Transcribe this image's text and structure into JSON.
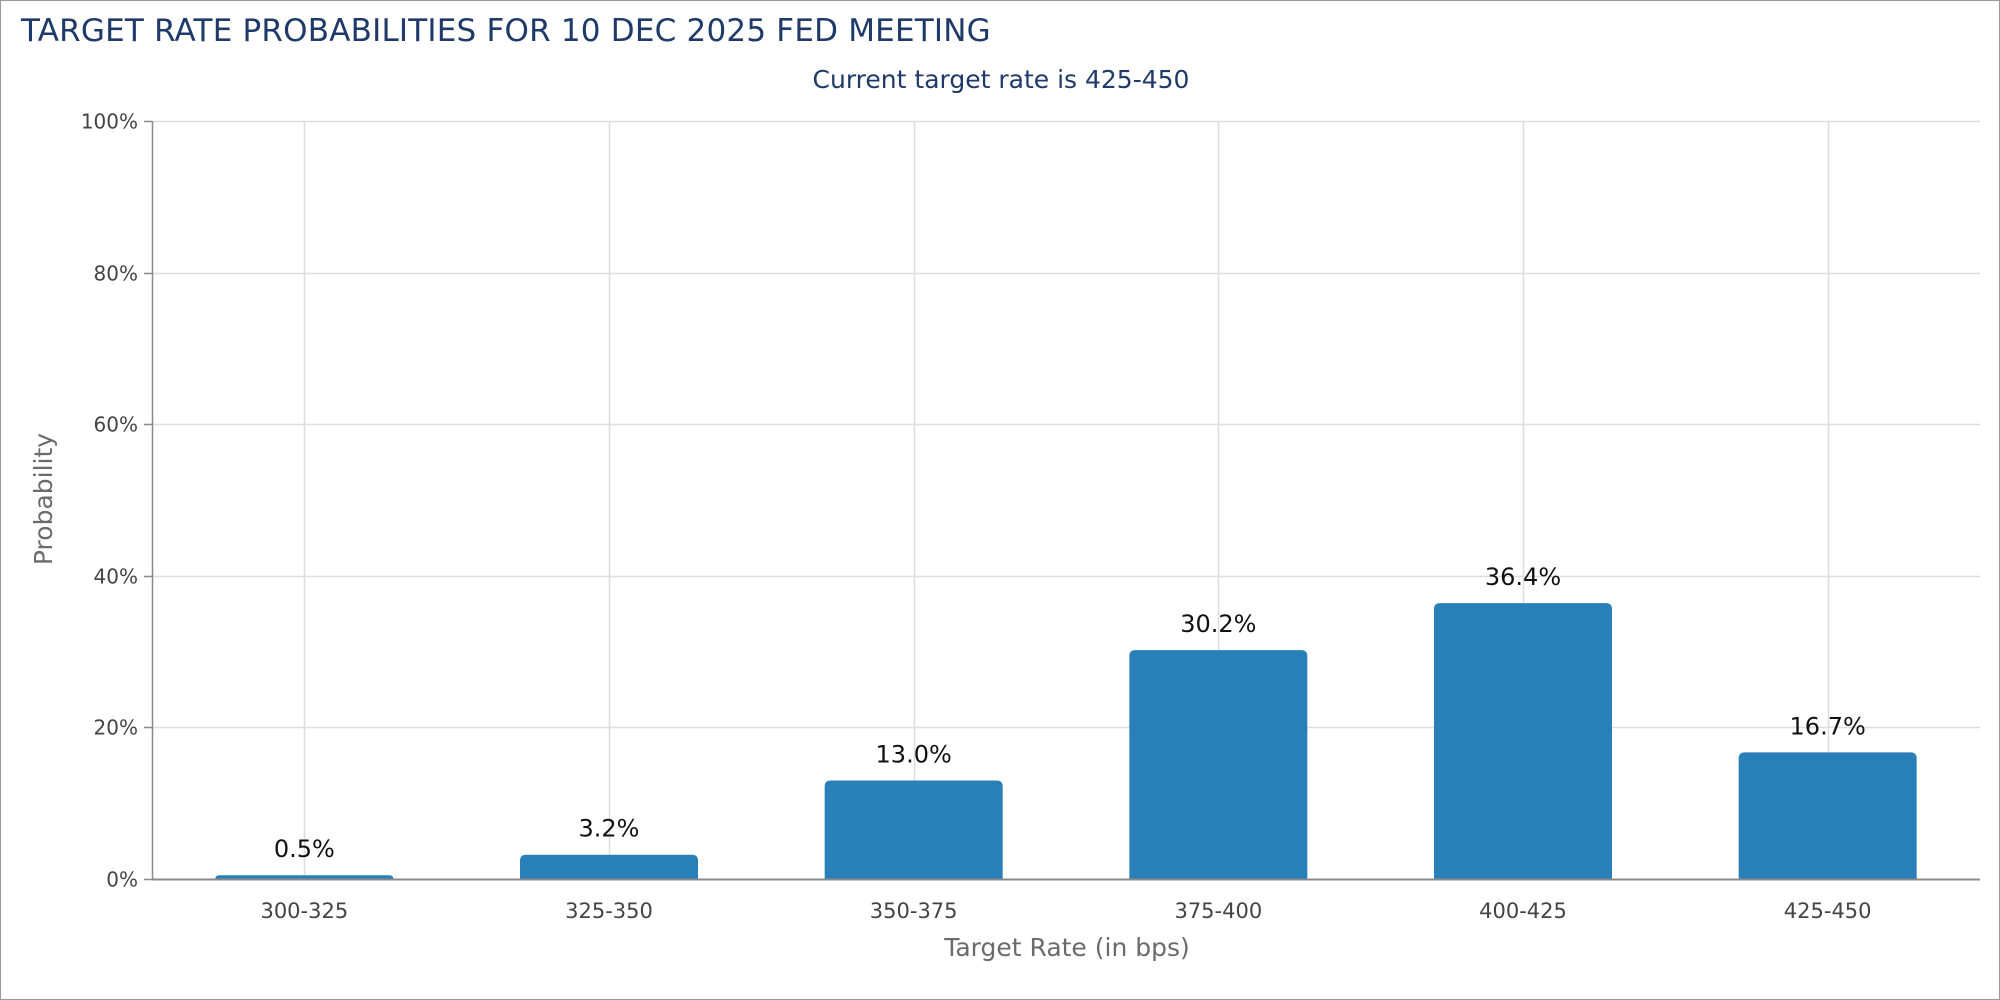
{
  "chart_data": {
    "type": "bar",
    "title": "TARGET RATE PROBABILITIES FOR 10 DEC 2025 FED MEETING",
    "subtitle": "Current target rate is 425-450",
    "xlabel": "Target Rate (in bps)",
    "ylabel": "Probability",
    "categories": [
      "300-325",
      "325-350",
      "350-375",
      "375-400",
      "400-425",
      "425-450"
    ],
    "values": [
      0.5,
      3.2,
      13.0,
      30.2,
      36.4,
      16.7
    ],
    "data_labels": [
      "0.5%",
      "3.2%",
      "13.0%",
      "30.2%",
      "36.4%",
      "16.7%"
    ],
    "ylim": [
      0,
      100
    ],
    "yticks": [
      0,
      20,
      40,
      60,
      80,
      100
    ],
    "ytick_labels": [
      "0%",
      "20%",
      "40%",
      "60%",
      "80%",
      "100%"
    ],
    "grid": true,
    "bar_color": "#2980b9"
  }
}
